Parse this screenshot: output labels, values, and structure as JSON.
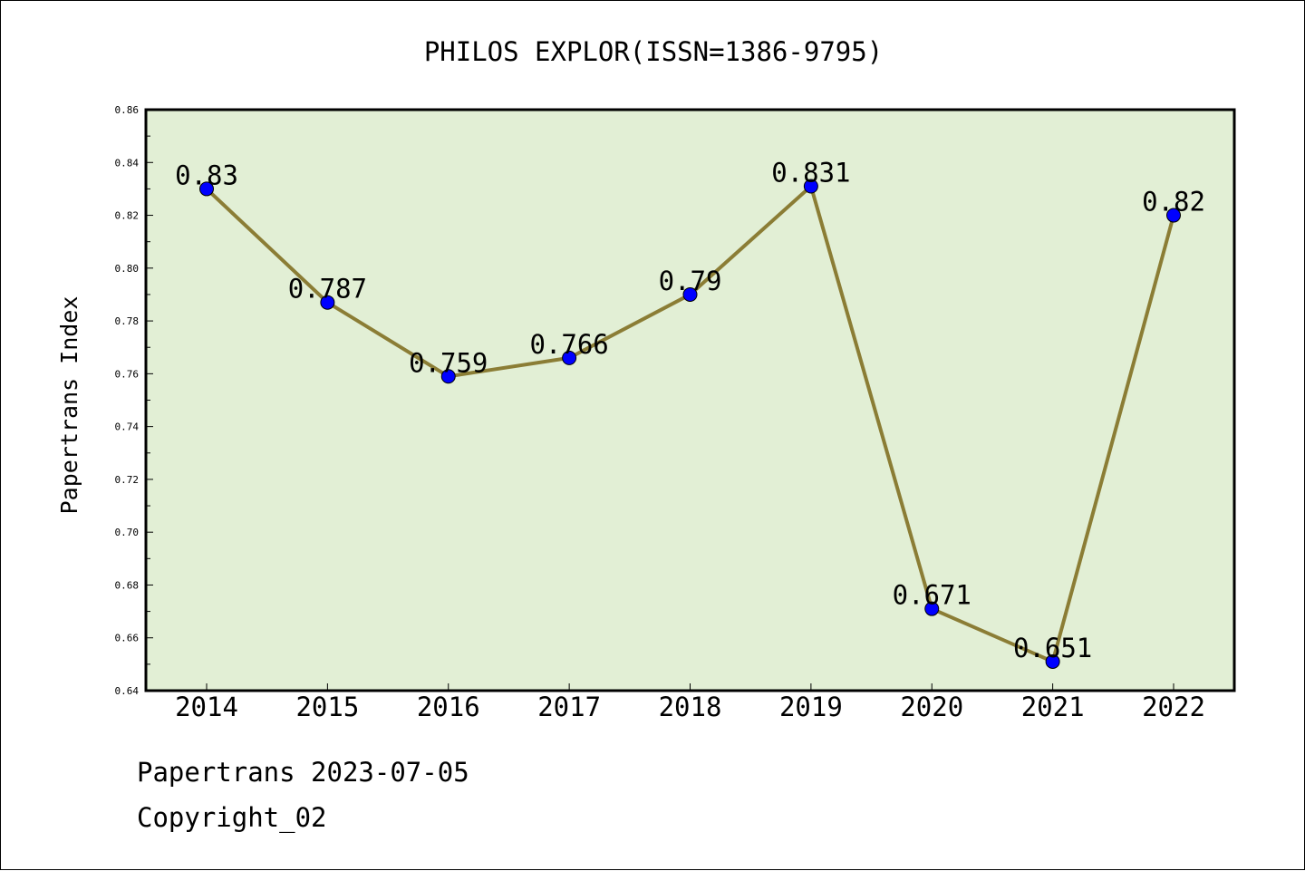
{
  "footer": {
    "date_line": "Papertrans 2023-07-05",
    "copyright_line": "Copyright_02"
  },
  "chart_data": {
    "type": "line",
    "title": "PHILOS EXPLOR(ISSN=1386-9795)",
    "xlabel": "",
    "ylabel": "Papertrans Index",
    "categories": [
      "2014",
      "2015",
      "2016",
      "2017",
      "2018",
      "2019",
      "2020",
      "2021",
      "2022"
    ],
    "series": [
      {
        "values": [
          0.83,
          0.787,
          0.759,
          0.766,
          0.79,
          0.831,
          0.671,
          0.651,
          0.82
        ]
      }
    ],
    "data_labels": [
      "0.83",
      "0.787",
      "0.759",
      "0.766",
      "0.79",
      "0.831",
      "0.671",
      "0.651",
      "0.82"
    ],
    "ylim": [
      0.64,
      0.86
    ],
    "yticks": [
      "0.64",
      "0.66",
      "0.68",
      "0.70",
      "0.72",
      "0.74",
      "0.76",
      "0.78",
      "0.80",
      "0.82",
      "0.84",
      "0.86"
    ],
    "grid": false,
    "legend": "none",
    "colors": {
      "plot_background": "#e2efd5",
      "line": "#8b7d35",
      "marker": "#0000ff"
    }
  }
}
